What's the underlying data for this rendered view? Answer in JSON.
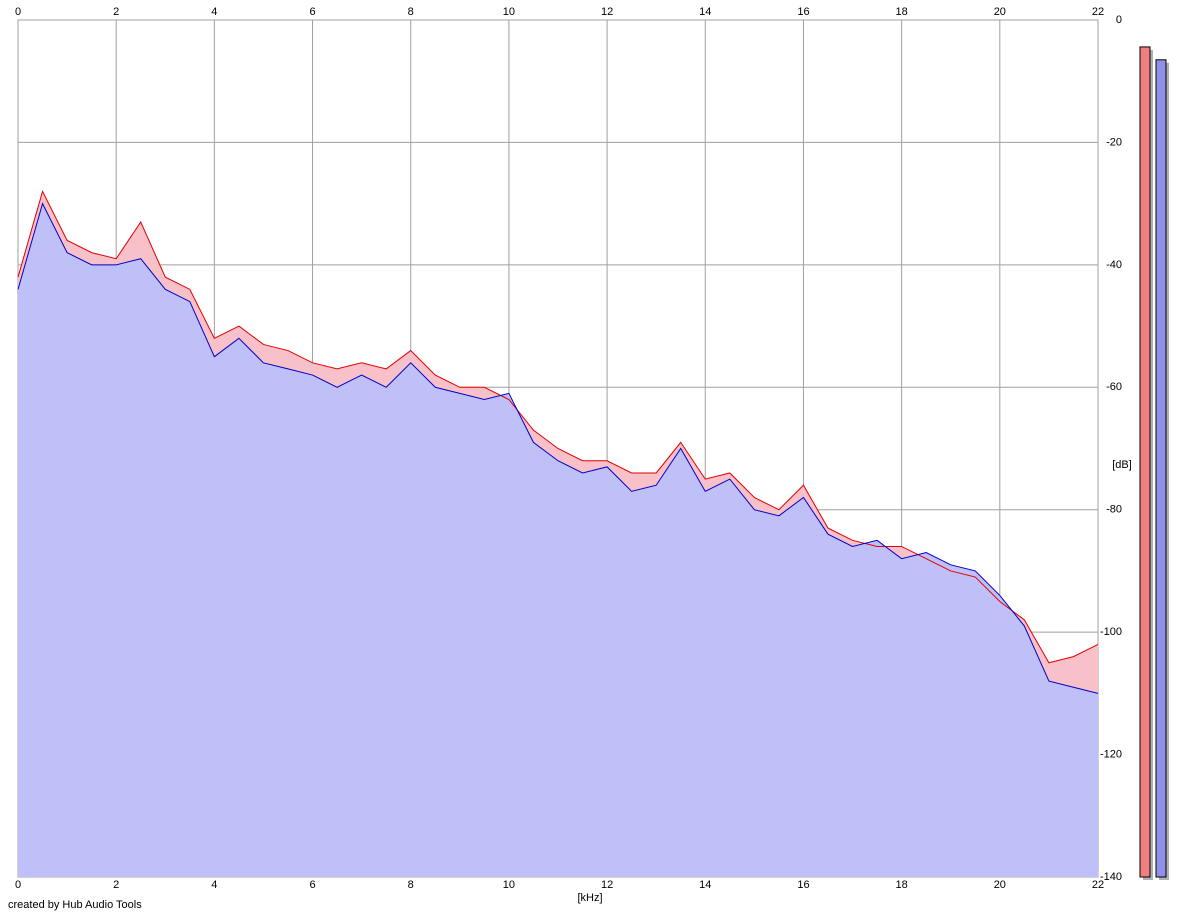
{
  "chart_data": {
    "type": "area",
    "x_label": "[kHz]",
    "y_label": "[dB]",
    "footer": "created by Hub Audio Tools",
    "x": [
      0,
      0.5,
      1,
      1.5,
      2,
      2.5,
      3,
      3.5,
      4,
      4.5,
      5,
      5.5,
      6,
      6.5,
      7,
      7.5,
      8,
      8.5,
      9,
      9.5,
      10,
      10.5,
      11,
      11.5,
      12,
      12.5,
      13,
      13.5,
      14,
      14.5,
      15,
      15.5,
      16,
      16.5,
      17,
      17.5,
      18,
      18.5,
      19,
      19.5,
      20,
      20.5,
      21,
      21.5,
      22
    ],
    "series": [
      {
        "color": "#e00000",
        "fill": "#f8c0c8",
        "values": [
          -42,
          -28,
          -36,
          -38,
          -39,
          -33,
          -42,
          -44,
          -52,
          -50,
          -53,
          -54,
          -56,
          -57,
          -56,
          -57,
          -54,
          -58,
          -60,
          -60,
          -62,
          -67,
          -70,
          -72,
          -72,
          -74,
          -74,
          -69,
          -75,
          -74,
          -78,
          -80,
          -76,
          -83,
          -85,
          -86,
          -86,
          -88,
          -90,
          -91,
          -95,
          -98,
          -105,
          -104,
          -102
        ]
      },
      {
        "color": "#0000c8",
        "fill": "#c0c0f8",
        "values": [
          -44,
          -30,
          -38,
          -40,
          -40,
          -39,
          -44,
          -46,
          -55,
          -52,
          -56,
          -57,
          -58,
          -60,
          -58,
          -60,
          -56,
          -60,
          -61,
          -62,
          -61,
          -69,
          -72,
          -74,
          -73,
          -77,
          -76,
          -70,
          -77,
          -75,
          -80,
          -81,
          -78,
          -84,
          -86,
          -85,
          -88,
          -87,
          -89,
          -90,
          -94,
          -99,
          -108,
          -109,
          -110
        ]
      }
    ],
    "meters": [
      {
        "color": "#f08080",
        "value": -4.4
      },
      {
        "color": "#9090e8",
        "value": -6.5
      }
    ],
    "xlim": [
      0,
      22
    ],
    "xticks": [
      0,
      2,
      4,
      6,
      8,
      10,
      12,
      14,
      16,
      18,
      20,
      22
    ],
    "ylim": [
      -140,
      0
    ],
    "yticks": [
      0,
      -20,
      -40,
      -60,
      -80,
      -100,
      -120,
      -140
    ],
    "grid": true
  }
}
